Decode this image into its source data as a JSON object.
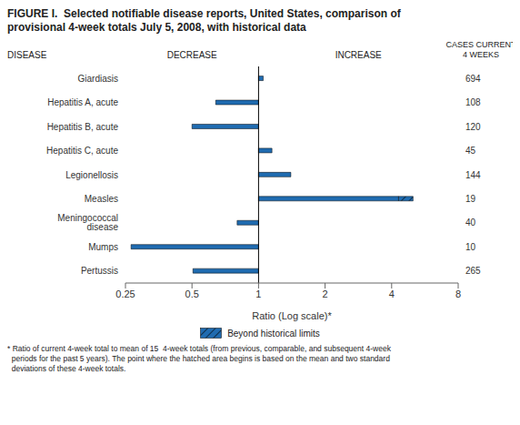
{
  "chart_data": {
    "type": "bar",
    "orientation": "horizontal",
    "log": "x",
    "title": "FIGURE I.  Selected notifiable disease reports, United States, comparison of\nprovisional 4-week totals July 5, 2008, with historical data",
    "categories": [
      "Giardiasis",
      "Hepatitis A, acute",
      "Hepatitis B, acute",
      "Hepatitis C, acute",
      "Legionellosis",
      "Measles",
      "Meningococcal disease",
      "Mumps",
      "Pertussis"
    ],
    "values": [
      1.05,
      0.64,
      0.5,
      1.15,
      1.4,
      5.0,
      0.8,
      0.265,
      0.505
    ],
    "hatch_start": [
      null,
      null,
      null,
      null,
      null,
      4.3,
      null,
      null,
      null
    ],
    "cases_current": [
      694,
      108,
      120,
      45,
      144,
      19,
      40,
      10,
      265
    ],
    "color": "#1F6BB0",
    "x_label": "Ratio (Log scale)*",
    "xlim": [
      0.25,
      8
    ],
    "xticks": [
      0.25,
      0.5,
      1,
      2,
      4,
      8
    ],
    "disease_label": "DISEASE",
    "decrease_label": "DECREASE",
    "increase_label": "INCREASE",
    "cases_label": "CASES CURRENT\n4 WEEKS",
    "legend": "bottom",
    "legend_label": "Beyond historical limits",
    "footnote": "* Ratio of current 4-week total to mean of 15  4-week totals (from previous, comparable, and subsequent 4-week\n  periods for the past 5 years). The point where the hatched area begins is based on the mean and two standard\n  deviations of these 4-week totals."
  }
}
